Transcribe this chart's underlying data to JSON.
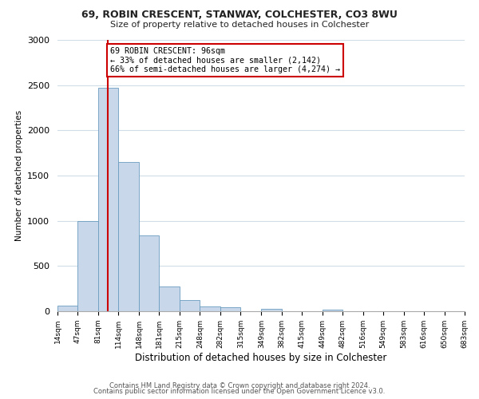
{
  "title1": "69, ROBIN CRESCENT, STANWAY, COLCHESTER, CO3 8WU",
  "title2": "Size of property relative to detached houses in Colchester",
  "xlabel": "Distribution of detached houses by size in Colchester",
  "ylabel": "Number of detached properties",
  "bin_labels": [
    "14sqm",
    "47sqm",
    "81sqm",
    "114sqm",
    "148sqm",
    "181sqm",
    "215sqm",
    "248sqm",
    "282sqm",
    "315sqm",
    "349sqm",
    "382sqm",
    "415sqm",
    "449sqm",
    "482sqm",
    "516sqm",
    "549sqm",
    "583sqm",
    "616sqm",
    "650sqm",
    "683sqm"
  ],
  "bar_heights": [
    60,
    1000,
    2470,
    1650,
    840,
    270,
    120,
    50,
    40,
    0,
    30,
    0,
    0,
    20,
    0,
    0,
    0,
    0,
    0,
    0,
    0
  ],
  "bar_color": "#c8d8ea",
  "bar_edge_color": "#6a9cbf",
  "property_line_x": 96,
  "property_line_label": "69 ROBIN CRESCENT: 96sqm",
  "annotation_line1": "← 33% of detached houses are smaller (2,142)",
  "annotation_line2": "66% of semi-detached houses are larger (4,274) →",
  "annotation_box_color": "#ffffff",
  "annotation_box_edge": "#cc0000",
  "vline_color": "#cc0000",
  "ylim": [
    0,
    3000
  ],
  "yticks": [
    0,
    500,
    1000,
    1500,
    2000,
    2500,
    3000
  ],
  "footer1": "Contains HM Land Registry data © Crown copyright and database right 2024.",
  "footer2": "Contains public sector information licensed under the Open Government Licence v3.0.",
  "bg_color": "#ffffff",
  "grid_color": "#d0dce8"
}
